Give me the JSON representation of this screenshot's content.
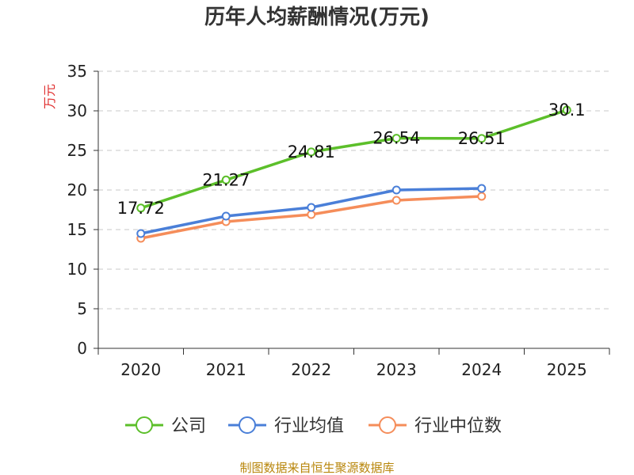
{
  "chart_data": {
    "type": "line",
    "title": "历年人均薪酬情况(万元)",
    "ylabel": "万元",
    "xlabel": "",
    "categories": [
      "2020",
      "2021",
      "2022",
      "2023",
      "2024",
      "2025"
    ],
    "ylim": [
      0,
      35
    ],
    "yticks": [
      0,
      5,
      10,
      15,
      20,
      25,
      30,
      35
    ],
    "grid": true,
    "legend_position": "bottom",
    "series": [
      {
        "name": "公司",
        "color": "#5cbf2a",
        "values": [
          17.72,
          21.27,
          24.81,
          26.54,
          26.51,
          30.1
        ],
        "labels": [
          "17.72",
          "21.27",
          "24.81",
          "26.54",
          "26.51",
          "30.1"
        ],
        "show_labels": true
      },
      {
        "name": "行业均值",
        "color": "#4a7fd8",
        "values": [
          14.5,
          16.7,
          17.8,
          20.0,
          20.2,
          null
        ],
        "show_labels": false
      },
      {
        "name": "行业中位数",
        "color": "#f58d5a",
        "values": [
          13.9,
          16.0,
          16.9,
          18.7,
          19.2,
          null
        ],
        "show_labels": false
      }
    ]
  },
  "footer": "制图数据来自恒生聚源数据库"
}
